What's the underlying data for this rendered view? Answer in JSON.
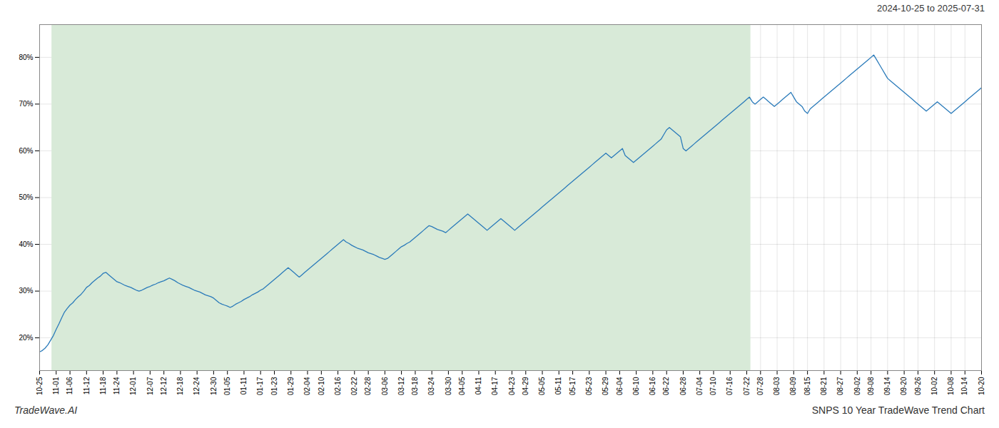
{
  "chart_data": {
    "type": "line",
    "title": "2024-10-25 to 2025-07-31",
    "annotations": [
      "TradeWave.AI",
      "SNPS 10 Year TradeWave Trend Chart"
    ],
    "color": "#2b7bba",
    "grid": true,
    "ylim": [
      13,
      87
    ],
    "yticks": [
      {
        "value": 20,
        "label": "20%"
      },
      {
        "value": 30,
        "label": "30%"
      },
      {
        "value": 40,
        "label": "40%"
      },
      {
        "value": 50,
        "label": "50%"
      },
      {
        "value": 60,
        "label": "60%"
      },
      {
        "value": 70,
        "label": "70%"
      },
      {
        "value": 80,
        "label": "80%"
      }
    ],
    "shaded": {
      "range": [
        0.013,
        0.755
      ],
      "color": "#d8ead8"
    },
    "categories": [
      "10-25",
      null,
      null,
      null,
      null,
      null,
      "11-01",
      null,
      null,
      null,
      null,
      "11-06",
      null,
      null,
      null,
      null,
      null,
      "11-12",
      null,
      null,
      null,
      null,
      null,
      "11-18",
      null,
      null,
      null,
      null,
      "11-24",
      null,
      null,
      null,
      null,
      null,
      "12-01",
      null,
      null,
      null,
      null,
      null,
      "12-07",
      null,
      null,
      null,
      null,
      "12-12",
      null,
      null,
      null,
      null,
      null,
      "12-18",
      null,
      null,
      null,
      null,
      null,
      "12-24",
      null,
      null,
      null,
      null,
      null,
      "12-30",
      null,
      null,
      null,
      null,
      "01-05",
      null,
      null,
      null,
      null,
      null,
      "01-11",
      null,
      null,
      null,
      null,
      null,
      "01-17",
      null,
      null,
      null,
      null,
      "01-23",
      null,
      null,
      null,
      null,
      null,
      "01-29",
      null,
      null,
      null,
      null,
      null,
      "02-04",
      null,
      null,
      null,
      null,
      "02-10",
      null,
      null,
      null,
      null,
      null,
      "02-16",
      null,
      null,
      null,
      null,
      null,
      "02-22",
      null,
      null,
      null,
      null,
      "02-28",
      null,
      null,
      null,
      null,
      null,
      "03-06",
      null,
      null,
      null,
      null,
      null,
      "03-12",
      null,
      null,
      null,
      null,
      "03-18",
      null,
      null,
      null,
      null,
      null,
      "03-24",
      null,
      null,
      null,
      null,
      null,
      "03-30",
      null,
      null,
      null,
      null,
      "04-05",
      null,
      null,
      null,
      null,
      null,
      "04-11",
      null,
      null,
      null,
      null,
      null,
      "04-17",
      null,
      null,
      null,
      null,
      null,
      "04-23",
      null,
      null,
      null,
      null,
      "04-29",
      null,
      null,
      null,
      null,
      null,
      "05-05",
      null,
      null,
      null,
      null,
      null,
      "05-11",
      null,
      null,
      null,
      null,
      "05-17",
      null,
      null,
      null,
      null,
      null,
      "05-23",
      null,
      null,
      null,
      null,
      null,
      "05-29",
      null,
      null,
      null,
      null,
      "06-04",
      null,
      null,
      null,
      null,
      null,
      "06-10",
      null,
      null,
      null,
      null,
      null,
      "06-16",
      null,
      null,
      null,
      null,
      "06-22",
      null,
      null,
      null,
      null,
      null,
      "06-28",
      null,
      null,
      null,
      null,
      null,
      "07-04",
      null,
      null,
      null,
      null,
      "07-10",
      null,
      null,
      null,
      null,
      null,
      "07-16",
      null,
      null,
      null,
      null,
      null,
      "07-22",
      null,
      null,
      null,
      null,
      "07-28",
      null,
      null,
      null,
      null,
      null,
      "08-03",
      null,
      null,
      null,
      null,
      null,
      "08-09",
      null,
      null,
      null,
      null,
      "08-15",
      null,
      null,
      null,
      null,
      null,
      "08-21",
      null,
      null,
      null,
      null,
      null,
      "08-27",
      null,
      null,
      null,
      null,
      null,
      "09-02",
      null,
      null,
      null,
      null,
      "09-08",
      null,
      null,
      null,
      null,
      null,
      "09-14",
      null,
      null,
      null,
      null,
      null,
      "09-20",
      null,
      null,
      null,
      null,
      "09-26",
      null,
      null,
      null,
      null,
      null,
      "10-02",
      null,
      null,
      null,
      null,
      null,
      "10-08",
      null,
      null,
      null,
      null,
      "10-14",
      null,
      null,
      null,
      null,
      null,
      "10-20"
    ],
    "values": [
      17.0,
      17.3,
      17.8,
      18.5,
      19.5,
      20.5,
      21.8,
      23.0,
      24.3,
      25.5,
      26.3,
      27.0,
      27.5,
      28.2,
      28.8,
      29.3,
      30.0,
      30.8,
      31.2,
      31.8,
      32.3,
      32.8,
      33.2,
      33.8,
      34.0,
      33.5,
      33.0,
      32.5,
      32.0,
      31.8,
      31.5,
      31.2,
      31.0,
      30.8,
      30.5,
      30.2,
      30.0,
      30.2,
      30.5,
      30.8,
      31.0,
      31.3,
      31.5,
      31.8,
      32.0,
      32.2,
      32.5,
      32.8,
      32.5,
      32.2,
      31.8,
      31.5,
      31.2,
      31.0,
      30.8,
      30.5,
      30.2,
      30.0,
      29.8,
      29.5,
      29.2,
      29.0,
      28.8,
      28.5,
      28.0,
      27.5,
      27.2,
      27.0,
      26.8,
      26.5,
      26.8,
      27.2,
      27.5,
      27.8,
      28.2,
      28.5,
      28.8,
      29.2,
      29.5,
      29.8,
      30.2,
      30.5,
      31.0,
      31.5,
      32.0,
      32.5,
      33.0,
      33.5,
      34.0,
      34.5,
      35.0,
      34.5,
      34.0,
      33.5,
      33.0,
      33.5,
      34.0,
      34.5,
      35.0,
      35.5,
      36.0,
      36.5,
      37.0,
      37.5,
      38.0,
      38.5,
      39.0,
      39.5,
      40.0,
      40.5,
      41.0,
      40.5,
      40.2,
      39.8,
      39.5,
      39.2,
      39.0,
      38.8,
      38.5,
      38.2,
      38.0,
      37.8,
      37.5,
      37.2,
      37.0,
      36.8,
      37.0,
      37.5,
      38.0,
      38.5,
      39.0,
      39.5,
      39.8,
      40.2,
      40.5,
      41.0,
      41.5,
      42.0,
      42.5,
      43.0,
      43.5,
      44.0,
      43.8,
      43.5,
      43.2,
      43.0,
      42.8,
      42.5,
      43.0,
      43.5,
      44.0,
      44.5,
      45.0,
      45.5,
      46.0,
      46.5,
      46.0,
      45.5,
      45.0,
      44.5,
      44.0,
      43.5,
      43.0,
      43.5,
      44.0,
      44.5,
      45.0,
      45.5,
      45.0,
      44.5,
      44.0,
      43.5,
      43.0,
      43.5,
      44.0,
      44.5,
      45.0,
      45.5,
      46.0,
      46.5,
      47.0,
      47.5,
      48.0,
      48.5,
      49.0,
      49.5,
      50.0,
      50.5,
      51.0,
      51.5,
      52.0,
      52.5,
      53.0,
      53.5,
      54.0,
      54.5,
      55.0,
      55.5,
      56.0,
      56.5,
      57.0,
      57.5,
      58.0,
      58.5,
      59.0,
      59.5,
      59.0,
      58.5,
      59.0,
      59.5,
      60.0,
      60.5,
      59.0,
      58.5,
      58.0,
      57.5,
      58.0,
      58.5,
      59.0,
      59.5,
      60.0,
      60.5,
      61.0,
      61.5,
      62.0,
      62.5,
      63.5,
      64.5,
      65.0,
      64.5,
      64.0,
      63.5,
      63.0,
      60.5,
      60.0,
      60.5,
      61.0,
      61.5,
      62.0,
      62.5,
      63.0,
      63.5,
      64.0,
      64.5,
      65.0,
      65.5,
      66.0,
      66.5,
      67.0,
      67.5,
      68.0,
      68.5,
      69.0,
      69.5,
      70.0,
      70.5,
      71.0,
      71.5,
      70.5,
      70.0,
      70.5,
      71.0,
      71.5,
      71.0,
      70.5,
      70.0,
      69.5,
      70.0,
      70.5,
      71.0,
      71.5,
      72.0,
      72.5,
      71.5,
      70.5,
      70.0,
      69.5,
      68.5,
      68.0,
      69.0,
      69.5,
      70.0,
      70.5,
      71.0,
      71.5,
      72.0,
      72.5,
      73.0,
      73.5,
      74.0,
      74.5,
      75.0,
      75.5,
      76.0,
      76.5,
      77.0,
      77.5,
      78.0,
      78.5,
      79.0,
      79.5,
      80.0,
      80.5,
      79.5,
      78.5,
      77.5,
      76.5,
      75.5,
      75.0,
      74.5,
      74.0,
      73.5,
      73.0,
      72.5,
      72.0,
      71.5,
      71.0,
      70.5,
      70.0,
      69.5,
      69.0,
      68.5,
      69.0,
      69.5,
      70.0,
      70.5,
      70.0,
      69.5,
      69.0,
      68.5,
      68.0,
      68.5,
      69.0,
      69.5,
      70.0,
      70.5,
      71.0,
      71.5,
      72.0,
      72.5,
      73.0,
      73.5
    ]
  }
}
